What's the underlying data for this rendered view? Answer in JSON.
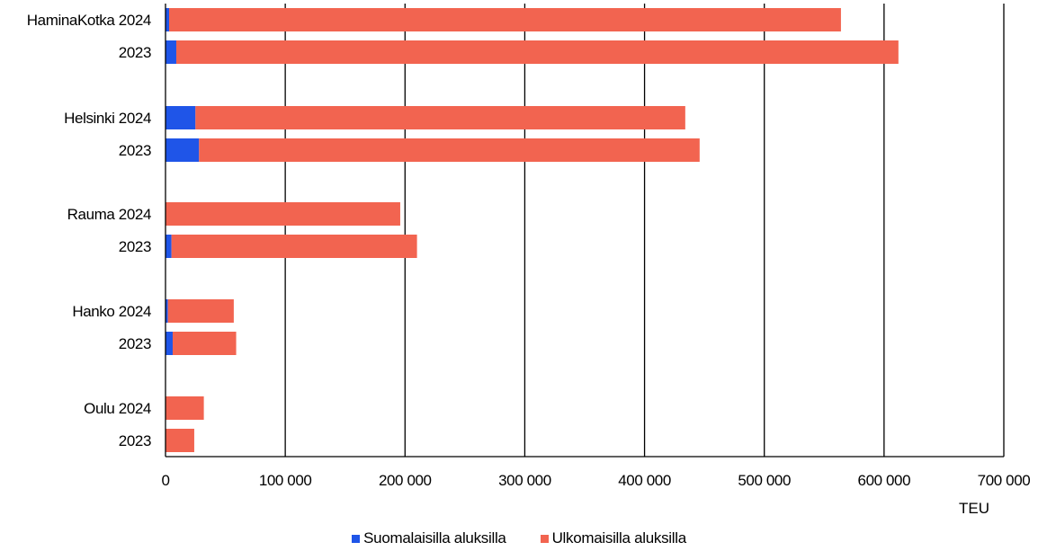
{
  "chart_data": {
    "type": "bar",
    "orientation": "horizontal",
    "stacked": true,
    "categories": [
      "HaminaKotka 2024",
      "2023",
      "Helsinki 2024",
      "2023",
      "Rauma 2024",
      "2023",
      "Hanko 2024",
      "2023",
      "Oulu 2024",
      "2023"
    ],
    "series": [
      {
        "name": "Suomalaisilla aluksilla",
        "color": "#1F55E8",
        "values": [
          3000,
          9000,
          25000,
          28000,
          0,
          5000,
          2000,
          6000,
          0,
          0
        ]
      },
      {
        "name": "Ulkomaisilla aluksilla",
        "color": "#F26450",
        "values": [
          561000,
          603000,
          409000,
          418000,
          196000,
          205000,
          55000,
          53000,
          32000,
          24000
        ]
      }
    ],
    "xlim": [
      0,
      700000
    ],
    "xticks": [
      "0",
      "100 000",
      "200 000",
      "300 000",
      "400 000",
      "500 000",
      "600 000",
      "700 000"
    ],
    "xlabel": "TEU",
    "ylabel": "",
    "grid": true,
    "legend_position": "bottom"
  }
}
